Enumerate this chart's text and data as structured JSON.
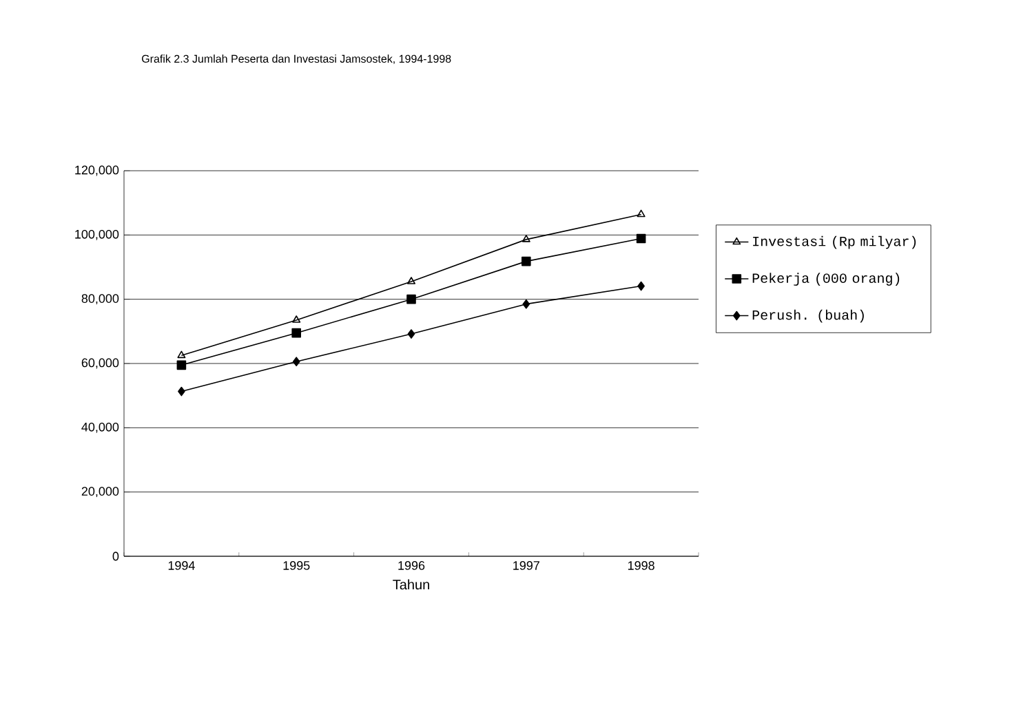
{
  "chart_data": {
    "type": "line",
    "title": "Grafik 2.3 Jumlah Peserta dan Investasi Jamsostek, 1994-1998",
    "xlabel": "Tahun",
    "categories": [
      "1994",
      "1995",
      "1996",
      "1997",
      "1998"
    ],
    "series": [
      {
        "name": "Investasi (Rp milyar)",
        "color": "#000000",
        "marker": "triangle",
        "values": [
          62500,
          73500,
          85500,
          98600,
          106400
        ]
      },
      {
        "name": "Pekerja (000 orang)",
        "color": "#000000",
        "marker": "square",
        "values": [
          59500,
          69500,
          80000,
          91800,
          98900
        ]
      },
      {
        "name": "Perush. (buah)",
        "color": "#000000",
        "marker": "diamond",
        "values": [
          51300,
          60600,
          69200,
          78500,
          84100
        ]
      }
    ],
    "ylim": [
      0,
      120000
    ],
    "yticks": [
      0,
      {
        "value": 20000,
        "label": "20,000"
      },
      {
        "value": 40000,
        "label": "40,000"
      },
      {
        "value": 60000,
        "label": "60,000"
      },
      {
        "value": 80000,
        "label": "80,000"
      },
      {
        "value": 100000,
        "label": "100,000"
      },
      {
        "value": 120000,
        "label": "120,000"
      }
    ],
    "grid": "y",
    "legend": "right",
    "line_style": "solid"
  }
}
